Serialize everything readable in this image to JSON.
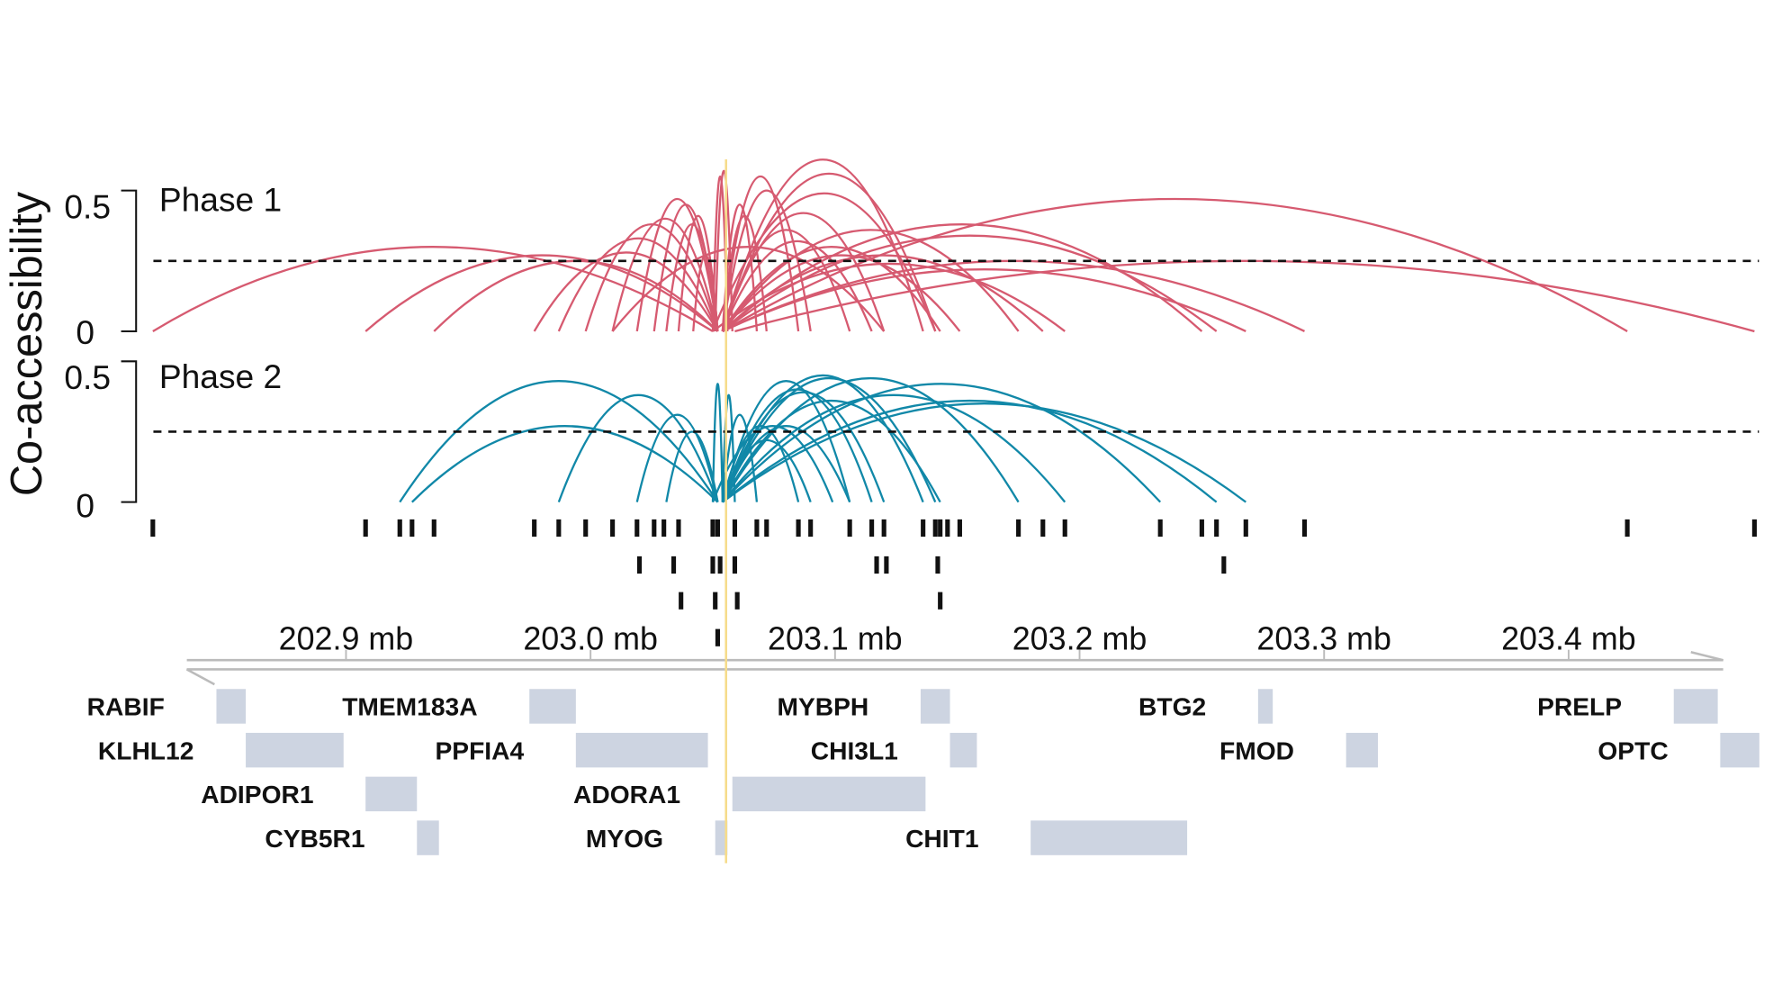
{
  "chart_data": {
    "type": "arc",
    "ylabel": "Co-accessibility",
    "xaxis": {
      "unit": "mb",
      "ticks": [
        202.9,
        203.0,
        203.1,
        203.2,
        203.3,
        203.4
      ],
      "tick_labels": [
        "202.9 mb",
        "203.0 mb",
        "203.1 mb",
        "203.2 mb",
        "203.3 mb",
        "203.4 mb"
      ],
      "range": [
        202.821,
        203.476
      ]
    },
    "highlight_position_mb": 203.054,
    "colors": {
      "phase1": "#d65a70",
      "phase2": "#1188a8",
      "gene": "#cdd4e1",
      "highlight": "#f6dc8c"
    },
    "panels": [
      {
        "name": "Phase 1",
        "ylim": [
          0,
          0.5
        ],
        "ytick_labels": [
          "0.5",
          "0"
        ],
        "threshold": 0.25,
        "connections": [
          [
            202.821,
            203.05,
            0.3
          ],
          [
            202.908,
            203.052,
            0.27
          ],
          [
            202.936,
            203.052,
            0.25
          ],
          [
            202.977,
            203.052,
            0.28
          ],
          [
            202.987,
            203.052,
            0.33
          ],
          [
            202.998,
            203.052,
            0.38
          ],
          [
            203.009,
            203.052,
            0.4
          ],
          [
            203.019,
            203.052,
            0.47
          ],
          [
            203.026,
            203.052,
            0.45
          ],
          [
            203.031,
            203.052,
            0.38
          ],
          [
            203.036,
            203.052,
            0.41
          ],
          [
            203.042,
            203.052,
            0.27
          ],
          [
            203.05,
            203.056,
            0.55
          ],
          [
            203.051,
            203.058,
            0.57
          ],
          [
            203.054,
            203.068,
            0.45
          ],
          [
            203.054,
            203.072,
            0.41
          ],
          [
            203.054,
            203.085,
            0.55
          ],
          [
            203.054,
            203.09,
            0.5
          ],
          [
            203.054,
            203.106,
            0.36
          ],
          [
            203.054,
            203.115,
            0.32
          ],
          [
            203.054,
            203.12,
            0.42
          ],
          [
            203.054,
            203.136,
            0.61
          ],
          [
            203.054,
            203.141,
            0.56
          ],
          [
            203.054,
            203.143,
            0.3
          ],
          [
            203.054,
            203.151,
            0.27
          ],
          [
            203.054,
            203.175,
            0.36
          ],
          [
            203.054,
            203.185,
            0.27
          ],
          [
            203.054,
            203.25,
            0.38
          ],
          [
            203.054,
            203.256,
            0.34
          ],
          [
            203.054,
            203.268,
            0.22
          ],
          [
            203.054,
            203.292,
            0.25
          ],
          [
            203.054,
            203.424,
            0.47
          ],
          [
            203.059,
            203.476,
            0.25
          ],
          [
            203.05,
            203.141,
            0.49
          ],
          [
            203.05,
            203.194,
            0.24
          ],
          [
            203.009,
            203.12,
            0.3
          ]
        ]
      },
      {
        "name": "Phase 2",
        "ylim": [
          0,
          0.5
        ],
        "ytick_labels": [
          "0.5",
          "0"
        ],
        "threshold": 0.25,
        "connections": [
          [
            202.922,
            203.052,
            0.43
          ],
          [
            202.927,
            203.052,
            0.27
          ],
          [
            202.987,
            203.052,
            0.38
          ],
          [
            203.019,
            203.052,
            0.31
          ],
          [
            203.031,
            203.052,
            0.25
          ],
          [
            203.05,
            203.054,
            0.42
          ],
          [
            203.054,
            203.059,
            0.38
          ],
          [
            203.054,
            203.068,
            0.31
          ],
          [
            203.054,
            203.085,
            0.27
          ],
          [
            203.054,
            203.09,
            0.22
          ],
          [
            203.054,
            203.106,
            0.43
          ],
          [
            203.054,
            203.115,
            0.4
          ],
          [
            203.054,
            203.12,
            0.39
          ],
          [
            203.054,
            203.136,
            0.45
          ],
          [
            203.054,
            203.141,
            0.44
          ],
          [
            203.054,
            203.143,
            0.36
          ],
          [
            203.054,
            203.175,
            0.44
          ],
          [
            203.054,
            203.194,
            0.38
          ],
          [
            203.054,
            203.233,
            0.42
          ],
          [
            203.054,
            203.256,
            0.36
          ],
          [
            203.054,
            203.268,
            0.35
          ],
          [
            203.05,
            203.099,
            0.27
          ],
          [
            203.054,
            203.106,
            0.27
          ]
        ]
      }
    ],
    "peaks": [
      [
        202.821,
        202.908,
        202.922,
        202.927,
        202.936,
        202.977,
        202.987,
        202.998,
        203.009,
        203.019,
        203.026,
        203.03,
        203.036,
        203.05,
        203.052,
        203.059,
        203.068,
        203.072,
        203.085,
        203.09,
        203.106,
        203.115,
        203.12,
        203.136,
        203.141,
        203.143,
        203.146,
        203.151,
        203.175,
        203.185,
        203.194,
        203.233,
        203.25,
        203.256,
        203.268,
        203.292,
        203.424,
        203.476
      ],
      [
        203.02,
        203.034,
        203.05,
        203.053,
        203.059,
        203.117,
        203.121,
        203.142,
        203.259
      ],
      [
        203.037,
        203.051,
        203.06,
        203.143
      ],
      [
        203.052
      ]
    ],
    "genes": [
      {
        "name": "RABIF",
        "start": 202.847,
        "end": 202.859,
        "row": 0
      },
      {
        "name": "TMEM183A",
        "start": 202.975,
        "end": 202.994,
        "row": 0
      },
      {
        "name": "MYBPH",
        "start": 203.135,
        "end": 203.147,
        "row": 0
      },
      {
        "name": "BTG2",
        "start": 203.273,
        "end": 203.279,
        "row": 0
      },
      {
        "name": "PRELP",
        "start": 203.443,
        "end": 203.461,
        "row": 0
      },
      {
        "name": "KLHL12",
        "start": 202.859,
        "end": 202.899,
        "row": 1
      },
      {
        "name": "PPFIA4",
        "start": 202.994,
        "end": 203.048,
        "row": 1
      },
      {
        "name": "CHI3L1",
        "start": 203.147,
        "end": 203.158,
        "row": 1
      },
      {
        "name": "FMOD",
        "start": 203.309,
        "end": 203.322,
        "row": 1
      },
      {
        "name": "OPTC",
        "start": 203.462,
        "end": 203.478,
        "row": 1
      },
      {
        "name": "ADIPOR1",
        "start": 202.908,
        "end": 202.929,
        "row": 2
      },
      {
        "name": "ADORA1",
        "start": 203.058,
        "end": 203.137,
        "row": 2
      },
      {
        "name": "CYB5R1",
        "start": 202.929,
        "end": 202.938,
        "row": 3
      },
      {
        "name": "MYOG",
        "start": 203.051,
        "end": 203.056,
        "row": 3
      },
      {
        "name": "CHIT1",
        "start": 203.18,
        "end": 203.244,
        "row": 3
      }
    ]
  }
}
